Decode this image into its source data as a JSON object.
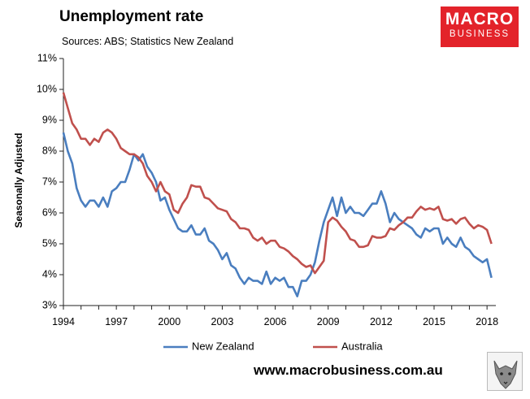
{
  "header": {
    "title": "Unemployment rate",
    "subtitle": "Sources: ABS; Statistics New Zealand",
    "logo_line1": "MACRO",
    "logo_line2": "BUSINESS"
  },
  "footer": {
    "url": "www.macrobusiness.com.au"
  },
  "colors": {
    "nz": "#4a7ebf",
    "au": "#c0504d",
    "logo_bg": "#e3232a"
  },
  "chart_data": {
    "type": "line",
    "title": "Unemployment rate",
    "ylabel": "Seasonally Adjusted",
    "xlim": [
      1994.0,
      2018.5
    ],
    "ylim": [
      3,
      11
    ],
    "y_ticks": [
      "3%",
      "4%",
      "5%",
      "6%",
      "7%",
      "8%",
      "9%",
      "10%",
      "11%"
    ],
    "x_ticks": [
      "1994",
      "1997",
      "2000",
      "2003",
      "2006",
      "2009",
      "2012",
      "2015",
      "2018"
    ],
    "grid": false,
    "legend": "bottom",
    "series": [
      {
        "name": "New Zealand",
        "color": "#4a7ebf",
        "x": [
          1994.0,
          1994.25,
          1994.5,
          1994.75,
          1995.0,
          1995.25,
          1995.5,
          1995.75,
          1996.0,
          1996.25,
          1996.5,
          1996.75,
          1997.0,
          1997.25,
          1997.5,
          1997.75,
          1998.0,
          1998.25,
          1998.5,
          1998.75,
          1999.0,
          1999.25,
          1999.5,
          1999.75,
          2000.0,
          2000.25,
          2000.5,
          2000.75,
          2001.0,
          2001.25,
          2001.5,
          2001.75,
          2002.0,
          2002.25,
          2002.5,
          2002.75,
          2003.0,
          2003.25,
          2003.5,
          2003.75,
          2004.0,
          2004.25,
          2004.5,
          2004.75,
          2005.0,
          2005.25,
          2005.5,
          2005.75,
          2006.0,
          2006.25,
          2006.5,
          2006.75,
          2007.0,
          2007.25,
          2007.5,
          2007.75,
          2008.0,
          2008.25,
          2008.5,
          2008.75,
          2009.0,
          2009.25,
          2009.5,
          2009.75,
          2010.0,
          2010.25,
          2010.5,
          2010.75,
          2011.0,
          2011.25,
          2011.5,
          2011.75,
          2012.0,
          2012.25,
          2012.5,
          2012.75,
          2013.0,
          2013.25,
          2013.5,
          2013.75,
          2014.0,
          2014.25,
          2014.5,
          2014.75,
          2015.0,
          2015.25,
          2015.5,
          2015.75,
          2016.0,
          2016.25,
          2016.5,
          2016.75,
          2017.0,
          2017.25,
          2017.5,
          2017.75,
          2018.0,
          2018.25
        ],
        "values": [
          8.6,
          8.0,
          7.6,
          6.8,
          6.4,
          6.2,
          6.4,
          6.4,
          6.2,
          6.5,
          6.2,
          6.7,
          6.8,
          7.0,
          7.0,
          7.4,
          7.9,
          7.7,
          7.9,
          7.5,
          7.3,
          7.0,
          6.4,
          6.5,
          6.1,
          5.8,
          5.5,
          5.4,
          5.4,
          5.6,
          5.3,
          5.3,
          5.5,
          5.1,
          5.0,
          4.8,
          4.5,
          4.7,
          4.3,
          4.2,
          3.9,
          3.7,
          3.9,
          3.8,
          3.8,
          3.7,
          4.1,
          3.7,
          3.9,
          3.8,
          3.9,
          3.6,
          3.6,
          3.3,
          3.8,
          3.8,
          4.0,
          4.4,
          5.1,
          5.7,
          6.1,
          6.5,
          5.9,
          6.5,
          6.0,
          6.2,
          6.0,
          6.0,
          5.9,
          6.1,
          6.3,
          6.3,
          6.7,
          6.3,
          5.7,
          6.0,
          5.8,
          5.7,
          5.6,
          5.5,
          5.3,
          5.2,
          5.5,
          5.4,
          5.5,
          5.5,
          5.0,
          5.2,
          5.0,
          4.9,
          5.2,
          4.9,
          4.8,
          4.6,
          4.5,
          4.4,
          4.5,
          3.9
        ]
      },
      {
        "name": "Australia",
        "color": "#c0504d",
        "x": [
          1994.0,
          1994.25,
          1994.5,
          1994.75,
          1995.0,
          1995.25,
          1995.5,
          1995.75,
          1996.0,
          1996.25,
          1996.5,
          1996.75,
          1997.0,
          1997.25,
          1997.5,
          1997.75,
          1998.0,
          1998.25,
          1998.5,
          1998.75,
          1999.0,
          1999.25,
          1999.5,
          1999.75,
          2000.0,
          2000.25,
          2000.5,
          2000.75,
          2001.0,
          2001.25,
          2001.5,
          2001.75,
          2002.0,
          2002.25,
          2002.5,
          2002.75,
          2003.0,
          2003.25,
          2003.5,
          2003.75,
          2004.0,
          2004.25,
          2004.5,
          2004.75,
          2005.0,
          2005.25,
          2005.5,
          2005.75,
          2006.0,
          2006.25,
          2006.5,
          2006.75,
          2007.0,
          2007.25,
          2007.5,
          2007.75,
          2008.0,
          2008.25,
          2008.5,
          2008.75,
          2009.0,
          2009.25,
          2009.5,
          2009.75,
          2010.0,
          2010.25,
          2010.5,
          2010.75,
          2011.0,
          2011.25,
          2011.5,
          2011.75,
          2012.0,
          2012.25,
          2012.5,
          2012.75,
          2013.0,
          2013.25,
          2013.5,
          2013.75,
          2014.0,
          2014.25,
          2014.5,
          2014.75,
          2015.0,
          2015.25,
          2015.5,
          2015.75,
          2016.0,
          2016.25,
          2016.5,
          2016.75,
          2017.0,
          2017.25,
          2017.5,
          2017.75,
          2018.0,
          2018.25
        ],
        "values": [
          9.9,
          9.4,
          8.9,
          8.7,
          8.4,
          8.4,
          8.2,
          8.4,
          8.3,
          8.6,
          8.7,
          8.6,
          8.4,
          8.1,
          8.0,
          7.9,
          7.9,
          7.8,
          7.6,
          7.2,
          7.0,
          6.7,
          7.0,
          6.7,
          6.6,
          6.1,
          6.0,
          6.3,
          6.5,
          6.9,
          6.85,
          6.85,
          6.5,
          6.45,
          6.3,
          6.15,
          6.1,
          6.05,
          5.8,
          5.7,
          5.5,
          5.5,
          5.45,
          5.2,
          5.1,
          5.2,
          5.0,
          5.1,
          5.1,
          4.9,
          4.85,
          4.75,
          4.6,
          4.5,
          4.35,
          4.25,
          4.3,
          4.05,
          4.25,
          4.45,
          5.7,
          5.85,
          5.75,
          5.55,
          5.4,
          5.15,
          5.1,
          4.9,
          4.9,
          4.95,
          5.25,
          5.2,
          5.2,
          5.25,
          5.5,
          5.45,
          5.6,
          5.7,
          5.85,
          5.85,
          6.05,
          6.2,
          6.1,
          6.15,
          6.1,
          6.2,
          5.8,
          5.75,
          5.8,
          5.65,
          5.8,
          5.85,
          5.65,
          5.5,
          5.6,
          5.55,
          5.45,
          5.0
        ]
      }
    ]
  }
}
